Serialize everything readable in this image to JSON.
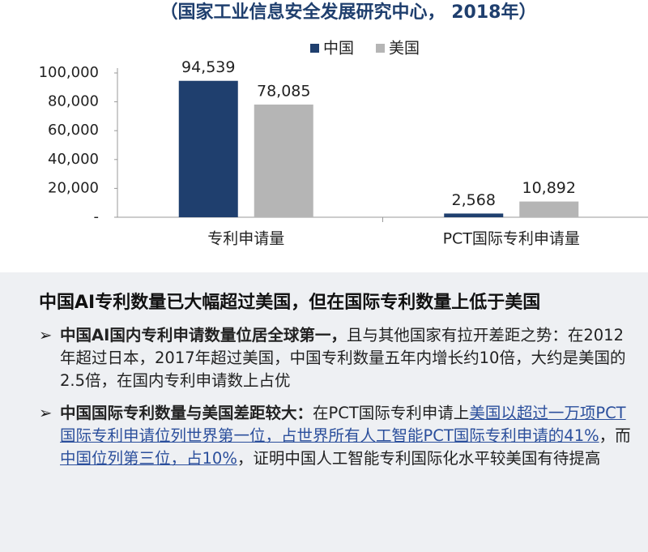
{
  "chart_data": {
    "type": "bar",
    "subtitle": "（国家工业信息安全发展研究中心， 2018年）",
    "categories": [
      "专利申请量",
      "PCT国际专利申请量"
    ],
    "series": [
      {
        "name": "中国",
        "color": "#1f3f6e",
        "values": [
          94539,
          2568
        ],
        "value_labels": [
          "94,539",
          "2,568"
        ]
      },
      {
        "name": "美国",
        "color": "#b5b5b5",
        "values": [
          78085,
          10892
        ],
        "value_labels": [
          "78,085",
          "10,892"
        ]
      }
    ],
    "ylim": [
      0,
      100000
    ],
    "yticks": [
      {
        "value": 0,
        "label": "-"
      },
      {
        "value": 20000,
        "label": "20,000"
      },
      {
        "value": 40000,
        "label": "40,000"
      },
      {
        "value": 60000,
        "label": "60,000"
      },
      {
        "value": 80000,
        "label": "80,000"
      },
      {
        "value": 100000,
        "label": "100,000"
      }
    ],
    "grid": false
  },
  "text": {
    "heading": "中国AI专利数量已大幅超过美国，但在国际专利数量上低于美国",
    "bullets": [
      {
        "marker": "➢",
        "segments": [
          {
            "style": "bold",
            "text": "中国AI国内专利申请数量位居全球第一，"
          },
          {
            "style": "normal",
            "text": "且与其他国家有拉开差距之势：在2012年超过日本，2017年超过美国，中国专利数量五年内增长约10倍，大约是美国的2.5倍，在国内专利申请数上占优"
          }
        ]
      },
      {
        "marker": "➢",
        "segments": [
          {
            "style": "bold",
            "text": "中国国际专利数量与美国差距较大："
          },
          {
            "style": "normal",
            "text": "在PCT国际专利申请上"
          },
          {
            "style": "underline",
            "text": "美国以超过一万项PCT国际专利申请位列世界第一位，占世界所有人工智能PCT国际专利申请的41%"
          },
          {
            "style": "normal",
            "text": "，而"
          },
          {
            "style": "underline",
            "text": "中国位列第三位，占10%"
          },
          {
            "style": "normal",
            "text": "，证明中国人工智能专利国际化水平较美国有待提高"
          }
        ]
      }
    ]
  }
}
